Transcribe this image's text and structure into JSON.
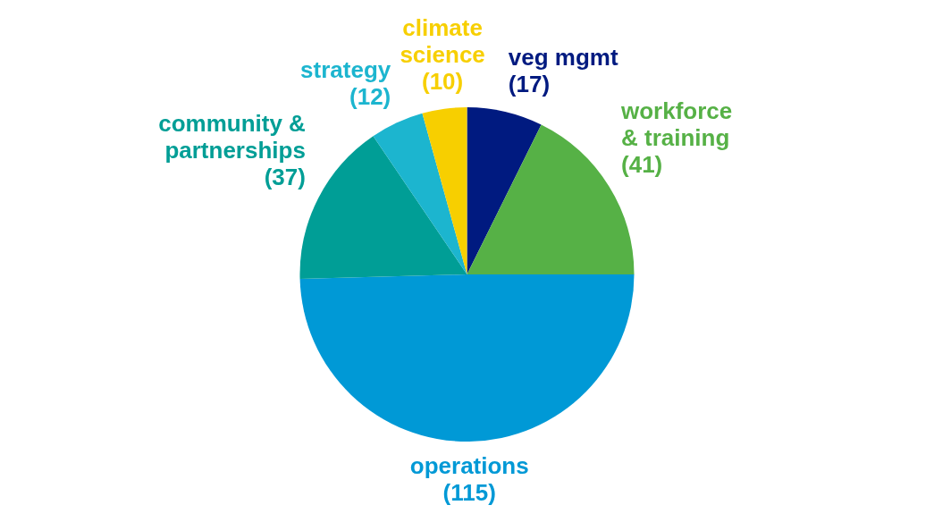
{
  "chart_data": {
    "type": "pie",
    "categories": [
      "veg mgmt",
      "workforce\n& training",
      "operations",
      "community &\npartnerships",
      "strategy",
      "climate\nscience"
    ],
    "values": [
      17,
      41,
      115,
      37,
      12,
      10
    ],
    "value_labels": [
      "(17)",
      "(41)",
      "(115)",
      "(37)",
      "(12)",
      "(10)"
    ],
    "colors": [
      "#001a80",
      "#56b146",
      "#0099d6",
      "#009e96",
      "#1cb5cf",
      "#f7cf00"
    ],
    "legend": false
  }
}
